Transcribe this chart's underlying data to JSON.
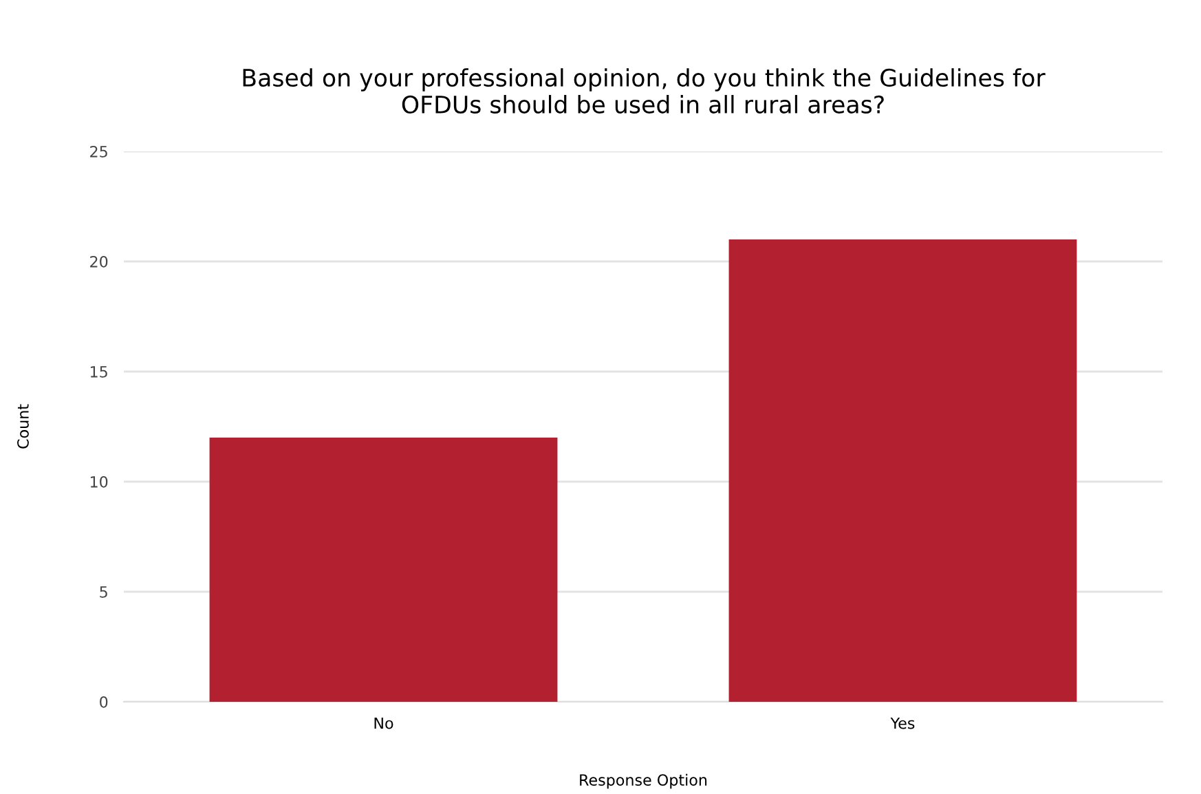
{
  "chart_data": {
    "type": "bar",
    "title": "Based on your professional opinion, do you think the Guidelines for\nOFDUs should be used in all rural areas?",
    "xlabel": "Response Option",
    "ylabel": "Count",
    "categories": [
      "No",
      "Yes"
    ],
    "values": [
      12,
      21
    ],
    "color": "#b3202f",
    "ylim": [
      0,
      25
    ],
    "yticks": [
      0,
      5,
      10,
      15,
      20,
      25
    ],
    "grid": "y",
    "legend": false
  }
}
